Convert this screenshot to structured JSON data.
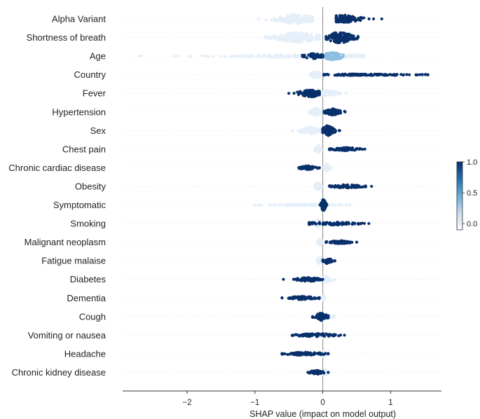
{
  "chart_data": {
    "type": "scatter",
    "subtype": "shap-beeswarm-summary",
    "title": "",
    "xlabel": "SHAP value (impact on model output)",
    "ylabel": "",
    "xlim": [
      -2.95,
      1.75
    ],
    "xticks": [
      -2,
      -1,
      0,
      1
    ],
    "xtick_labels": [
      "−2",
      "−1",
      "0",
      "1"
    ],
    "grid": false,
    "zero_line": 0,
    "colorbar": {
      "min": -0.1,
      "max": 1.0,
      "ticks": [
        1.0,
        0.5,
        0.0
      ],
      "tick_labels": [
        "1.0",
        "0.5",
        "0.0"
      ],
      "colors": [
        "#f7fbff",
        "#c6dbef",
        "#6baed6",
        "#2171b5",
        "#08306b"
      ],
      "placement": "right"
    },
    "features": [
      {
        "name": "Alpha Variant",
        "groups": [
          {
            "value": 0.0,
            "range": [
              -0.95,
              -0.15
            ],
            "center": -0.4,
            "spread": 0.18,
            "height": 0.75,
            "n": 140
          },
          {
            "value": 1.0,
            "range": [
              0.2,
              0.87
            ],
            "center": 0.3,
            "spread": 0.15,
            "height": 0.6,
            "n": 120
          }
        ]
      },
      {
        "name": "Shortness of breath",
        "groups": [
          {
            "value": 0.0,
            "range": [
              -0.85,
              -0.05
            ],
            "center": -0.35,
            "spread": 0.2,
            "height": 0.8,
            "n": 160
          },
          {
            "value": 1.0,
            "range": [
              0.05,
              0.52
            ],
            "center": 0.25,
            "spread": 0.12,
            "height": 0.85,
            "n": 140
          }
        ]
      },
      {
        "name": "Age",
        "groups": [
          {
            "value": 0.0,
            "range": [
              -2.7,
              0.6
            ],
            "center": -0.1,
            "spread": 0.9,
            "height": 0.25,
            "n": 240
          },
          {
            "value": 0.35,
            "range": [
              -0.3,
              0.3
            ],
            "center": 0.15,
            "spread": 0.1,
            "height": 0.6,
            "n": 80
          },
          {
            "value": 1.0,
            "range": [
              -0.3,
              0.0
            ],
            "center": -0.15,
            "spread": 0.1,
            "height": 0.4,
            "n": 40
          }
        ]
      },
      {
        "name": "Country",
        "groups": [
          {
            "value": 0.0,
            "range": [
              -0.18,
              -0.02
            ],
            "center": -0.1,
            "spread": 0.04,
            "height": 0.6,
            "n": 60
          },
          {
            "value": 1.0,
            "range": [
              0.02,
              1.55
            ],
            "center": 0.6,
            "spread": 0.45,
            "height": 0.12,
            "n": 140
          }
        ]
      },
      {
        "name": "Fever",
        "groups": [
          {
            "value": 0.0,
            "range": [
              -0.15,
              0.35
            ],
            "center": 0.05,
            "spread": 0.1,
            "height": 0.45,
            "n": 70
          },
          {
            "value": 1.0,
            "range": [
              -0.5,
              -0.05
            ],
            "center": -0.18,
            "spread": 0.1,
            "height": 0.6,
            "n": 90
          }
        ]
      },
      {
        "name": "Hypertension",
        "groups": [
          {
            "value": 0.0,
            "range": [
              -0.2,
              -0.02
            ],
            "center": -0.1,
            "spread": 0.05,
            "height": 0.6,
            "n": 70
          },
          {
            "value": 1.0,
            "range": [
              0.02,
              0.33
            ],
            "center": 0.15,
            "spread": 0.07,
            "height": 0.5,
            "n": 70
          }
        ]
      },
      {
        "name": "Sex",
        "groups": [
          {
            "value": 0.0,
            "range": [
              -0.45,
              -0.02
            ],
            "center": -0.18,
            "spread": 0.1,
            "height": 0.55,
            "n": 90
          },
          {
            "value": 1.0,
            "range": [
              0.0,
              0.25
            ],
            "center": 0.08,
            "spread": 0.05,
            "height": 0.8,
            "n": 90
          }
        ]
      },
      {
        "name": "Chest pain",
        "groups": [
          {
            "value": 0.0,
            "range": [
              -0.12,
              -0.02
            ],
            "center": -0.07,
            "spread": 0.03,
            "height": 0.6,
            "n": 40
          },
          {
            "value": 1.0,
            "range": [
              0.1,
              0.62
            ],
            "center": 0.35,
            "spread": 0.12,
            "height": 0.25,
            "n": 80
          }
        ]
      },
      {
        "name": "Chronic cardiac disease",
        "groups": [
          {
            "value": 0.0,
            "range": [
              0.02,
              0.12
            ],
            "center": 0.06,
            "spread": 0.03,
            "height": 0.6,
            "n": 40
          },
          {
            "value": 1.0,
            "range": [
              -0.35,
              -0.05
            ],
            "center": -0.22,
            "spread": 0.07,
            "height": 0.3,
            "n": 70
          }
        ]
      },
      {
        "name": "Obesity",
        "groups": [
          {
            "value": 0.0,
            "range": [
              -0.12,
              -0.02
            ],
            "center": -0.07,
            "spread": 0.03,
            "height": 0.6,
            "n": 40
          },
          {
            "value": 1.0,
            "range": [
              0.1,
              0.72
            ],
            "center": 0.35,
            "spread": 0.15,
            "height": 0.25,
            "n": 80
          }
        ]
      },
      {
        "name": "Symptomatic",
        "groups": [
          {
            "value": 0.0,
            "range": [
              -1.0,
              0.4
            ],
            "center": -0.3,
            "spread": 0.35,
            "height": 0.12,
            "n": 110
          },
          {
            "value": 1.0,
            "range": [
              -0.04,
              0.06
            ],
            "center": 0.01,
            "spread": 0.02,
            "height": 0.9,
            "n": 70
          }
        ]
      },
      {
        "name": "Smoking",
        "groups": [
          {
            "value": 0.0,
            "range": [
              -0.12,
              -0.02
            ],
            "center": -0.07,
            "spread": 0.03,
            "height": 0.6,
            "n": 40
          },
          {
            "value": 1.0,
            "range": [
              -0.2,
              0.68
            ],
            "center": 0.1,
            "spread": 0.25,
            "height": 0.25,
            "n": 90
          }
        ]
      },
      {
        "name": "Malignant neoplasm",
        "groups": [
          {
            "value": 0.0,
            "range": [
              -0.08,
              -0.01
            ],
            "center": -0.04,
            "spread": 0.02,
            "height": 0.6,
            "n": 40
          },
          {
            "value": 1.0,
            "range": [
              0.05,
              0.5
            ],
            "center": 0.25,
            "spread": 0.1,
            "height": 0.25,
            "n": 70
          }
        ]
      },
      {
        "name": "Fatigue malaise",
        "groups": [
          {
            "value": 0.0,
            "range": [
              -0.08,
              -0.01
            ],
            "center": -0.04,
            "spread": 0.02,
            "height": 0.6,
            "n": 40
          },
          {
            "value": 1.0,
            "range": [
              0.0,
              0.18
            ],
            "center": 0.07,
            "spread": 0.04,
            "height": 0.45,
            "n": 50
          }
        ]
      },
      {
        "name": "Diabetes",
        "groups": [
          {
            "value": 0.0,
            "range": [
              -0.05,
              0.18
            ],
            "center": 0.05,
            "spread": 0.04,
            "height": 0.5,
            "n": 40
          },
          {
            "value": 1.0,
            "range": [
              -0.58,
              0.0
            ],
            "center": -0.2,
            "spread": 0.12,
            "height": 0.3,
            "n": 80
          }
        ]
      },
      {
        "name": "Dementia",
        "groups": [
          {
            "value": 0.0,
            "range": [
              -0.01,
              0.03
            ],
            "center": 0.01,
            "spread": 0.01,
            "height": 0.5,
            "n": 30
          },
          {
            "value": 1.0,
            "range": [
              -0.6,
              -0.05
            ],
            "center": -0.3,
            "spread": 0.14,
            "height": 0.25,
            "n": 80
          }
        ]
      },
      {
        "name": "Cough",
        "groups": [
          {
            "value": 0.0,
            "range": [
              -0.08,
              0.18
            ],
            "center": 0.04,
            "spread": 0.06,
            "height": 0.4,
            "n": 50
          },
          {
            "value": 1.0,
            "range": [
              -0.15,
              0.08
            ],
            "center": -0.02,
            "spread": 0.05,
            "height": 0.6,
            "n": 60
          }
        ]
      },
      {
        "name": "Vomiting or nausea",
        "groups": [
          {
            "value": 0.0,
            "range": [
              -0.03,
              0.05
            ],
            "center": 0.01,
            "spread": 0.02,
            "height": 0.5,
            "n": 30
          },
          {
            "value": 1.0,
            "range": [
              -0.45,
              0.32
            ],
            "center": -0.1,
            "spread": 0.2,
            "height": 0.25,
            "n": 70
          }
        ]
      },
      {
        "name": "Headache",
        "groups": [
          {
            "value": 0.0,
            "range": [
              -0.03,
              0.05
            ],
            "center": 0.01,
            "spread": 0.02,
            "height": 0.5,
            "n": 30
          },
          {
            "value": 1.0,
            "range": [
              -0.6,
              0.08
            ],
            "center": -0.25,
            "spread": 0.17,
            "height": 0.25,
            "n": 80
          }
        ]
      },
      {
        "name": "Chronic kidney disease",
        "groups": [
          {
            "value": 0.0,
            "range": [
              -0.02,
              0.1
            ],
            "center": 0.03,
            "spread": 0.03,
            "height": 0.5,
            "n": 30
          },
          {
            "value": 1.0,
            "range": [
              -0.22,
              0.08
            ],
            "center": -0.1,
            "spread": 0.06,
            "height": 0.3,
            "n": 50
          }
        ]
      }
    ]
  }
}
